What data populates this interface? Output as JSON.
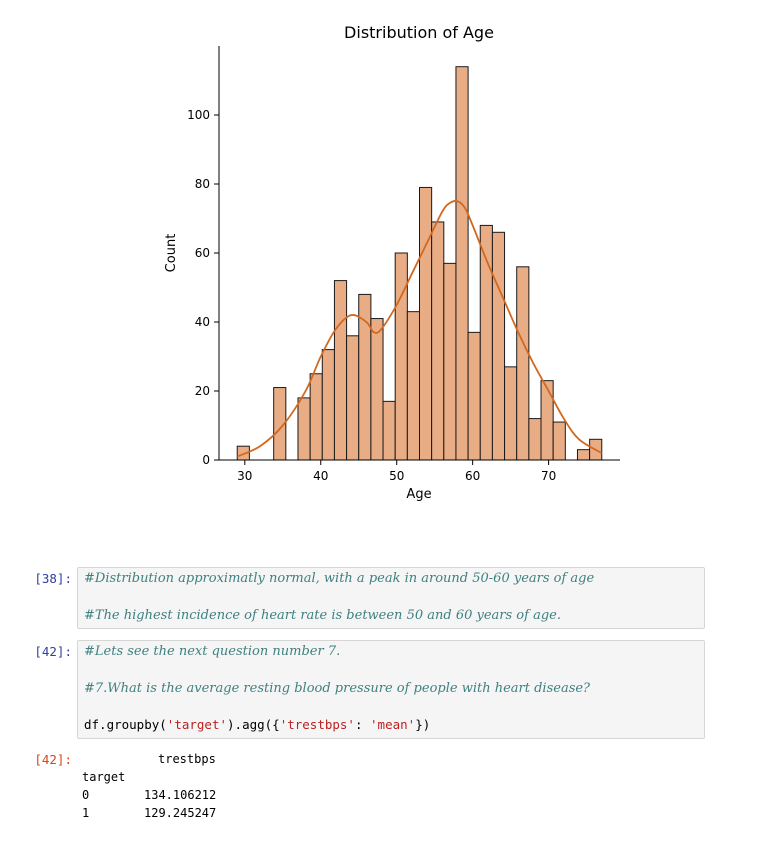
{
  "chart_data": {
    "type": "bar",
    "title": "Distribution of Age",
    "xlabel": "Age",
    "ylabel": "Count",
    "xlim": [
      26.6,
      79.4
    ],
    "ylim": [
      0,
      120
    ],
    "xticks": [
      30,
      40,
      50,
      60,
      70
    ],
    "yticks": [
      0,
      20,
      40,
      60,
      80,
      100
    ],
    "bin_edges": [
      29,
      30.6,
      32.2,
      33.8,
      35.4,
      37,
      38.6,
      40.2,
      41.8,
      43.4,
      45,
      46.6,
      48.2,
      49.8,
      51.4,
      53,
      54.6,
      56.2,
      57.8,
      59.4,
      61,
      62.6,
      64.2,
      65.8,
      67.4,
      69,
      70.6,
      72.2,
      73.8,
      75.4,
      77
    ],
    "values": [
      4,
      0,
      0,
      21,
      0,
      18,
      25,
      32,
      52,
      36,
      48,
      41,
      17,
      60,
      43,
      79,
      69,
      57,
      114,
      37,
      68,
      66,
      27,
      56,
      12,
      23,
      11,
      0,
      3,
      6
    ],
    "kde": {
      "x": [
        29,
        32,
        35,
        38,
        40,
        42,
        44,
        46,
        47,
        48,
        50,
        52,
        54,
        56,
        57,
        58,
        59,
        60,
        62,
        64,
        66,
        68,
        70,
        72,
        74,
        77
      ],
      "y": [
        1,
        4,
        10,
        20,
        30,
        38,
        42,
        40,
        37,
        38,
        45,
        54,
        63,
        72,
        74.5,
        75,
        73,
        68,
        57,
        47,
        37,
        28,
        20,
        12,
        6,
        2
      ]
    },
    "bar_fill": "#e9ad86",
    "bar_edge": "#1a1a1a",
    "kde_color": "#d2691e"
  },
  "cells": [
    {
      "prompt": "[38]:",
      "lines": [
        "#Distribution approximatly normal, with a peak in around 50-60 years of age",
        "#The highest incidence of heart rate is between 50 and 60 years of age."
      ]
    },
    {
      "prompt": "[42]:",
      "lines": [
        "#Lets see the next question number 7.",
        "#7.What is the average resting blood pressure of people with heart disease?"
      ],
      "code": {
        "pre": "df.groupby(",
        "arg1": "'target'",
        "mid": ").agg({",
        "key": "'trestbps'",
        "colon": ": ",
        "val": "'mean'",
        "post": "})"
      }
    }
  ],
  "output": {
    "prompt": "[42]:",
    "column_header": "trestbps",
    "index_name": "target",
    "rows": [
      {
        "index": "0",
        "value": "134.106212"
      },
      {
        "index": "1",
        "value": "129.245247"
      }
    ]
  }
}
